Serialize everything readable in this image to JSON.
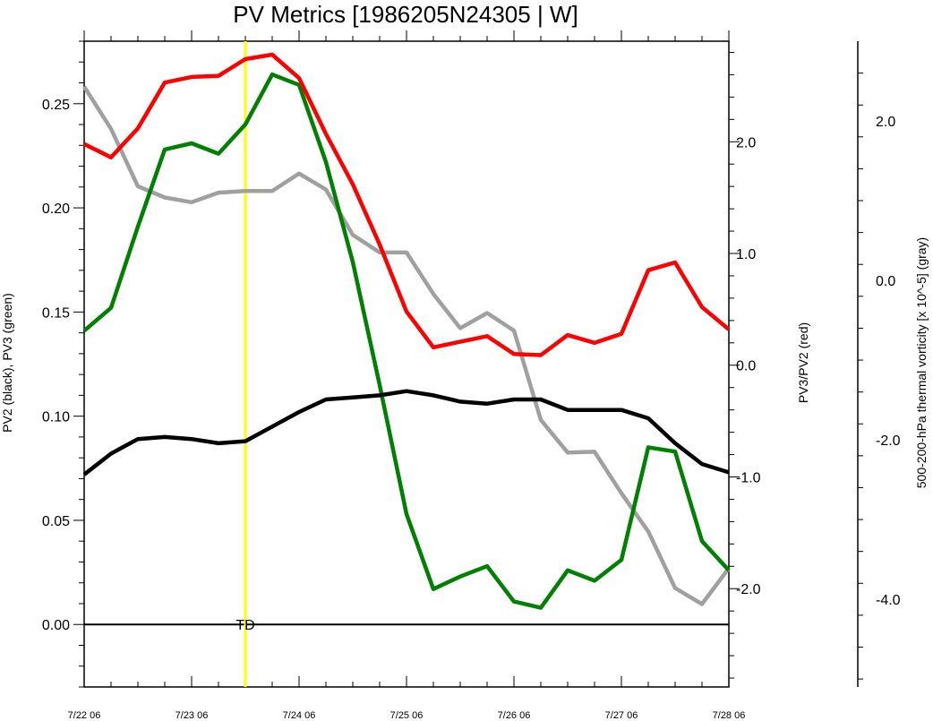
{
  "chart_data": {
    "type": "line",
    "title": "PV Metrics [1986205N24305 | W]",
    "xlabel": "",
    "x_ticks": [
      "7/22 06",
      "7/23 06",
      "7/24 06",
      "7/25 06",
      "7/26 06",
      "7/27 06",
      "7/28 06"
    ],
    "x_range": [
      0,
      144
    ],
    "left_axis": {
      "label": "PV2 (black), PV3 (green)",
      "range": [
        -0.03,
        0.28
      ],
      "ticks": [
        "0.00",
        "0.05",
        "0.10",
        "0.15",
        "0.20",
        "0.25"
      ],
      "tick_values": [
        0,
        0.05,
        0.1,
        0.15,
        0.2,
        0.25
      ]
    },
    "right_axis": {
      "label": "PV3/PV2 (red)",
      "range": [
        -2.88,
        2.9
      ],
      "ticks": [
        "2.0",
        "1.0",
        "0.0",
        "-1.0",
        "-2.0"
      ],
      "tick_values": [
        2,
        1,
        0,
        -1,
        -2
      ]
    },
    "far_right_axis": {
      "label": "500-200-hPa thermal vorticity [x 10^-5] (gray)",
      "range": [
        -5.1,
        3.0
      ],
      "ticks": [
        "2.0",
        "0.0",
        "-2.0",
        "-4.0"
      ],
      "tick_values": [
        2,
        0,
        -2,
        -4
      ]
    },
    "x_hours": [
      0,
      6,
      12,
      18,
      24,
      30,
      36,
      42,
      48,
      54,
      60,
      66,
      72,
      78,
      84,
      90,
      96,
      102,
      108,
      114,
      120,
      126,
      132,
      138,
      144
    ],
    "series": [
      {
        "name": "PV2",
        "axis": "left",
        "color": "#000000",
        "values": [
          0.072,
          0.082,
          0.089,
          0.09,
          0.089,
          0.087,
          0.088,
          0.095,
          0.102,
          0.108,
          0.109,
          0.11,
          0.112,
          0.11,
          0.107,
          0.106,
          0.108,
          0.108,
          0.103,
          0.103,
          0.103,
          0.099,
          0.087,
          0.077,
          0.073
        ]
      },
      {
        "name": "PV3",
        "axis": "left",
        "color": "#008000",
        "values": [
          0.141,
          0.152,
          0.191,
          0.228,
          0.231,
          0.226,
          0.24,
          0.264,
          0.259,
          0.222,
          0.174,
          0.115,
          0.053,
          0.017,
          0.023,
          0.028,
          0.011,
          0.008,
          0.026,
          0.021,
          0.031,
          0.085,
          0.083,
          0.04,
          0.026
        ]
      },
      {
        "name": "PV3/PV2",
        "axis": "right",
        "color": "#ff0000",
        "values": [
          1.98,
          1.86,
          2.12,
          2.53,
          2.58,
          2.59,
          2.74,
          2.78,
          2.57,
          2.07,
          1.62,
          1.08,
          0.48,
          0.16,
          0.21,
          0.26,
          0.1,
          0.09,
          0.27,
          0.2,
          0.28,
          0.85,
          0.92,
          0.52,
          0.32
        ]
      },
      {
        "name": "thermal vorticity",
        "axis": "far_right",
        "color": "#a0a0a0",
        "values": [
          2.43,
          1.9,
          1.18,
          1.04,
          0.98,
          1.1,
          1.12,
          1.12,
          1.34,
          1.14,
          0.57,
          0.35,
          0.35,
          -0.17,
          -0.6,
          -0.41,
          -0.63,
          -1.75,
          -2.16,
          -2.15,
          -2.67,
          -3.15,
          -3.86,
          -4.06,
          -3.61
        ]
      }
    ],
    "marker": {
      "hour": 36,
      "label": "TD",
      "color": "#ffff00"
    },
    "zero_line_color": "#000000"
  }
}
